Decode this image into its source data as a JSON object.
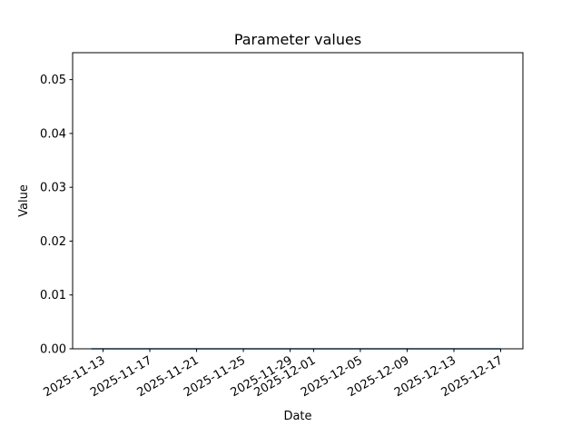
{
  "chart_data": {
    "type": "line",
    "title": "Parameter values",
    "xlabel": "Date",
    "ylabel": "Value",
    "xlim": [
      "2025-11-10",
      "2025-12-19"
    ],
    "ylim": [
      0,
      0.055
    ],
    "grid": false,
    "x_ticks": [
      "2025-11-13",
      "2025-11-17",
      "2025-11-21",
      "2025-11-25",
      "2025-11-29",
      "2025-12-01",
      "2025-12-05",
      "2025-12-09",
      "2025-12-13",
      "2025-12-17"
    ],
    "y_ticks": [
      "0.00",
      "0.01",
      "0.02",
      "0.03",
      "0.04",
      "0.05"
    ],
    "y_tick_values": [
      0,
      0.01,
      0.02,
      0.03,
      0.04,
      0.05
    ],
    "series": [
      {
        "color": "#1f77b4",
        "x": [
          "2025-11-12",
          "2025-11-13",
          "2025-11-14",
          "2025-11-15",
          "2025-11-16",
          "2025-11-17",
          "2025-11-18",
          "2025-11-19",
          "2025-11-20",
          "2025-11-21",
          "2025-11-22",
          "2025-11-23",
          "2025-11-24",
          "2025-11-25",
          "2025-11-26",
          "2025-11-27",
          "2025-11-28",
          "2025-11-29",
          "2025-11-30",
          "2025-12-01",
          "2025-12-02",
          "2025-12-03",
          "2025-12-04",
          "2025-12-05",
          "2025-12-06",
          "2025-12-07",
          "2025-12-08",
          "2025-12-09",
          "2025-12-10",
          "2025-12-11",
          "2025-12-12",
          "2025-12-13",
          "2025-12-14",
          "2025-12-15",
          "2025-12-16",
          "2025-12-17"
        ],
        "y": [
          0,
          0,
          0,
          0,
          0,
          0,
          0,
          0,
          0,
          0,
          0,
          0,
          0,
          0,
          0,
          0,
          0,
          0,
          0,
          0,
          0,
          0,
          0,
          0,
          0,
          0,
          0,
          0,
          0,
          0,
          0,
          0,
          0,
          0,
          0,
          0
        ]
      }
    ]
  }
}
